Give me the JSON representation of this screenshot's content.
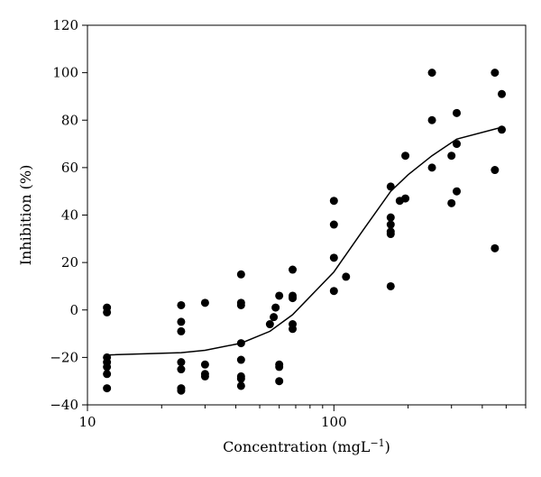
{
  "chart_data": {
    "type": "scatter",
    "xlabel": "Concentration (mgL",
    "xlabel_sup": "−1",
    "xlabel_close": ")",
    "ylabel": "Inhibition (%)",
    "x_scale": "log",
    "xlim": [
      10,
      600
    ],
    "ylim": [
      -40,
      120
    ],
    "x_ticks": [
      {
        "value": 10,
        "label": "10"
      },
      {
        "value": 100,
        "label": "100"
      }
    ],
    "y_ticks": [
      {
        "value": -40,
        "label": "−40"
      },
      {
        "value": -20,
        "label": "−20"
      },
      {
        "value": 0,
        "label": "0"
      },
      {
        "value": 20,
        "label": "20"
      },
      {
        "value": 40,
        "label": "40"
      },
      {
        "value": 60,
        "label": "60"
      },
      {
        "value": 80,
        "label": "80"
      },
      {
        "value": 100,
        "label": "100"
      },
      {
        "value": 120,
        "label": "120"
      }
    ],
    "grid": false,
    "points": [
      {
        "x": 12,
        "y": 1
      },
      {
        "x": 12,
        "y": -1
      },
      {
        "x": 12,
        "y": -20
      },
      {
        "x": 12,
        "y": -22
      },
      {
        "x": 12,
        "y": -24
      },
      {
        "x": 12,
        "y": -27
      },
      {
        "x": 12,
        "y": -33
      },
      {
        "x": 24,
        "y": 2
      },
      {
        "x": 24,
        "y": -5
      },
      {
        "x": 24,
        "y": -9
      },
      {
        "x": 24,
        "y": -22
      },
      {
        "x": 24,
        "y": -25
      },
      {
        "x": 24,
        "y": -33
      },
      {
        "x": 24,
        "y": -34
      },
      {
        "x": 30,
        "y": 3
      },
      {
        "x": 30,
        "y": -23
      },
      {
        "x": 30,
        "y": -27
      },
      {
        "x": 30,
        "y": -28
      },
      {
        "x": 42,
        "y": 15
      },
      {
        "x": 42,
        "y": 3
      },
      {
        "x": 42,
        "y": 2
      },
      {
        "x": 42,
        "y": -14
      },
      {
        "x": 42,
        "y": -21
      },
      {
        "x": 42,
        "y": -28
      },
      {
        "x": 42,
        "y": -29
      },
      {
        "x": 42,
        "y": -32
      },
      {
        "x": 55,
        "y": -6
      },
      {
        "x": 57,
        "y": -3
      },
      {
        "x": 58,
        "y": 1
      },
      {
        "x": 60,
        "y": 6
      },
      {
        "x": 60,
        "y": -23
      },
      {
        "x": 60,
        "y": -24
      },
      {
        "x": 60,
        "y": -30
      },
      {
        "x": 68,
        "y": 17
      },
      {
        "x": 68,
        "y": 6
      },
      {
        "x": 68,
        "y": 5
      },
      {
        "x": 68,
        "y": -6
      },
      {
        "x": 68,
        "y": -8
      },
      {
        "x": 100,
        "y": 46
      },
      {
        "x": 100,
        "y": 36
      },
      {
        "x": 100,
        "y": 22
      },
      {
        "x": 100,
        "y": 8
      },
      {
        "x": 112,
        "y": 14
      },
      {
        "x": 170,
        "y": 52
      },
      {
        "x": 170,
        "y": 39
      },
      {
        "x": 170,
        "y": 36
      },
      {
        "x": 170,
        "y": 33
      },
      {
        "x": 170,
        "y": 32
      },
      {
        "x": 170,
        "y": 10
      },
      {
        "x": 185,
        "y": 46
      },
      {
        "x": 195,
        "y": 65
      },
      {
        "x": 195,
        "y": 47
      },
      {
        "x": 250,
        "y": 100
      },
      {
        "x": 250,
        "y": 80
      },
      {
        "x": 250,
        "y": 60
      },
      {
        "x": 300,
        "y": 65
      },
      {
        "x": 300,
        "y": 45
      },
      {
        "x": 315,
        "y": 83
      },
      {
        "x": 315,
        "y": 70
      },
      {
        "x": 315,
        "y": 50
      },
      {
        "x": 450,
        "y": 100
      },
      {
        "x": 450,
        "y": 59
      },
      {
        "x": 450,
        "y": 26
      },
      {
        "x": 480,
        "y": 91
      },
      {
        "x": 480,
        "y": 76
      }
    ],
    "fit_line": [
      {
        "x": 12,
        "y": -19
      },
      {
        "x": 24,
        "y": -18
      },
      {
        "x": 30,
        "y": -17
      },
      {
        "x": 42,
        "y": -14
      },
      {
        "x": 55,
        "y": -9
      },
      {
        "x": 68,
        "y": -2
      },
      {
        "x": 100,
        "y": 16
      },
      {
        "x": 130,
        "y": 33
      },
      {
        "x": 170,
        "y": 50
      },
      {
        "x": 200,
        "y": 57
      },
      {
        "x": 250,
        "y": 65
      },
      {
        "x": 315,
        "y": 72
      },
      {
        "x": 480,
        "y": 77
      }
    ]
  }
}
